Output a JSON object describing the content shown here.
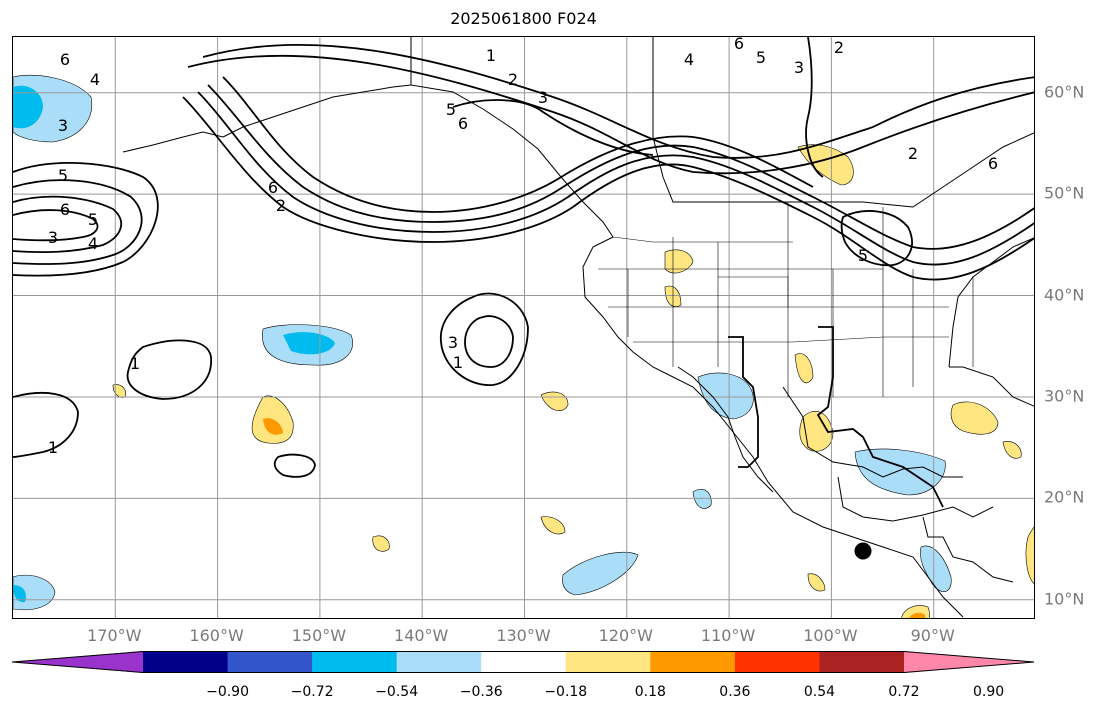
{
  "title": "2025061800 F024",
  "lon_labels": [
    {
      "text": "170°W",
      "lon": -170
    },
    {
      "text": "160°W",
      "lon": -160
    },
    {
      "text": "150°W",
      "lon": -150
    },
    {
      "text": "140°W",
      "lon": -140
    },
    {
      "text": "130°W",
      "lon": -130
    },
    {
      "text": "120°W",
      "lon": -120
    },
    {
      "text": "110°W",
      "lon": -110
    },
    {
      "text": "100°W",
      "lon": -100
    },
    {
      "text": "90°W",
      "lon": -90
    }
  ],
  "lat_labels": [
    {
      "text": "60°N",
      "lat": 60
    },
    {
      "text": "50°N",
      "lat": 50
    },
    {
      "text": "40°N",
      "lat": 40
    },
    {
      "text": "30°N",
      "lat": 30
    },
    {
      "text": "20°N",
      "lat": 20
    },
    {
      "text": "10°N",
      "lat": 10
    }
  ],
  "colorbar": {
    "ticks": [
      "−0.90",
      "−0.72",
      "−0.54",
      "−0.36",
      "−0.18",
      "0.18",
      "0.36",
      "0.54",
      "0.72",
      "0.90"
    ],
    "colors": [
      "#9933cc",
      "#000088",
      "#3355cc",
      "#00bbee",
      "#aaddf8",
      "#ffffff",
      "#ffe680",
      "#ff9900",
      "#ff3300",
      "#aa2222",
      "#ff88aa"
    ]
  },
  "contour_labels": [
    "6",
    "4",
    "3",
    "1",
    "2",
    "4",
    "6",
    "5",
    "2",
    "3",
    "3",
    "5",
    "6",
    "5",
    "6",
    "3",
    "5",
    "4",
    "2",
    "6",
    "5",
    "6",
    "2",
    "3",
    "1",
    "1",
    "1"
  ],
  "marker": "black-dot"
}
